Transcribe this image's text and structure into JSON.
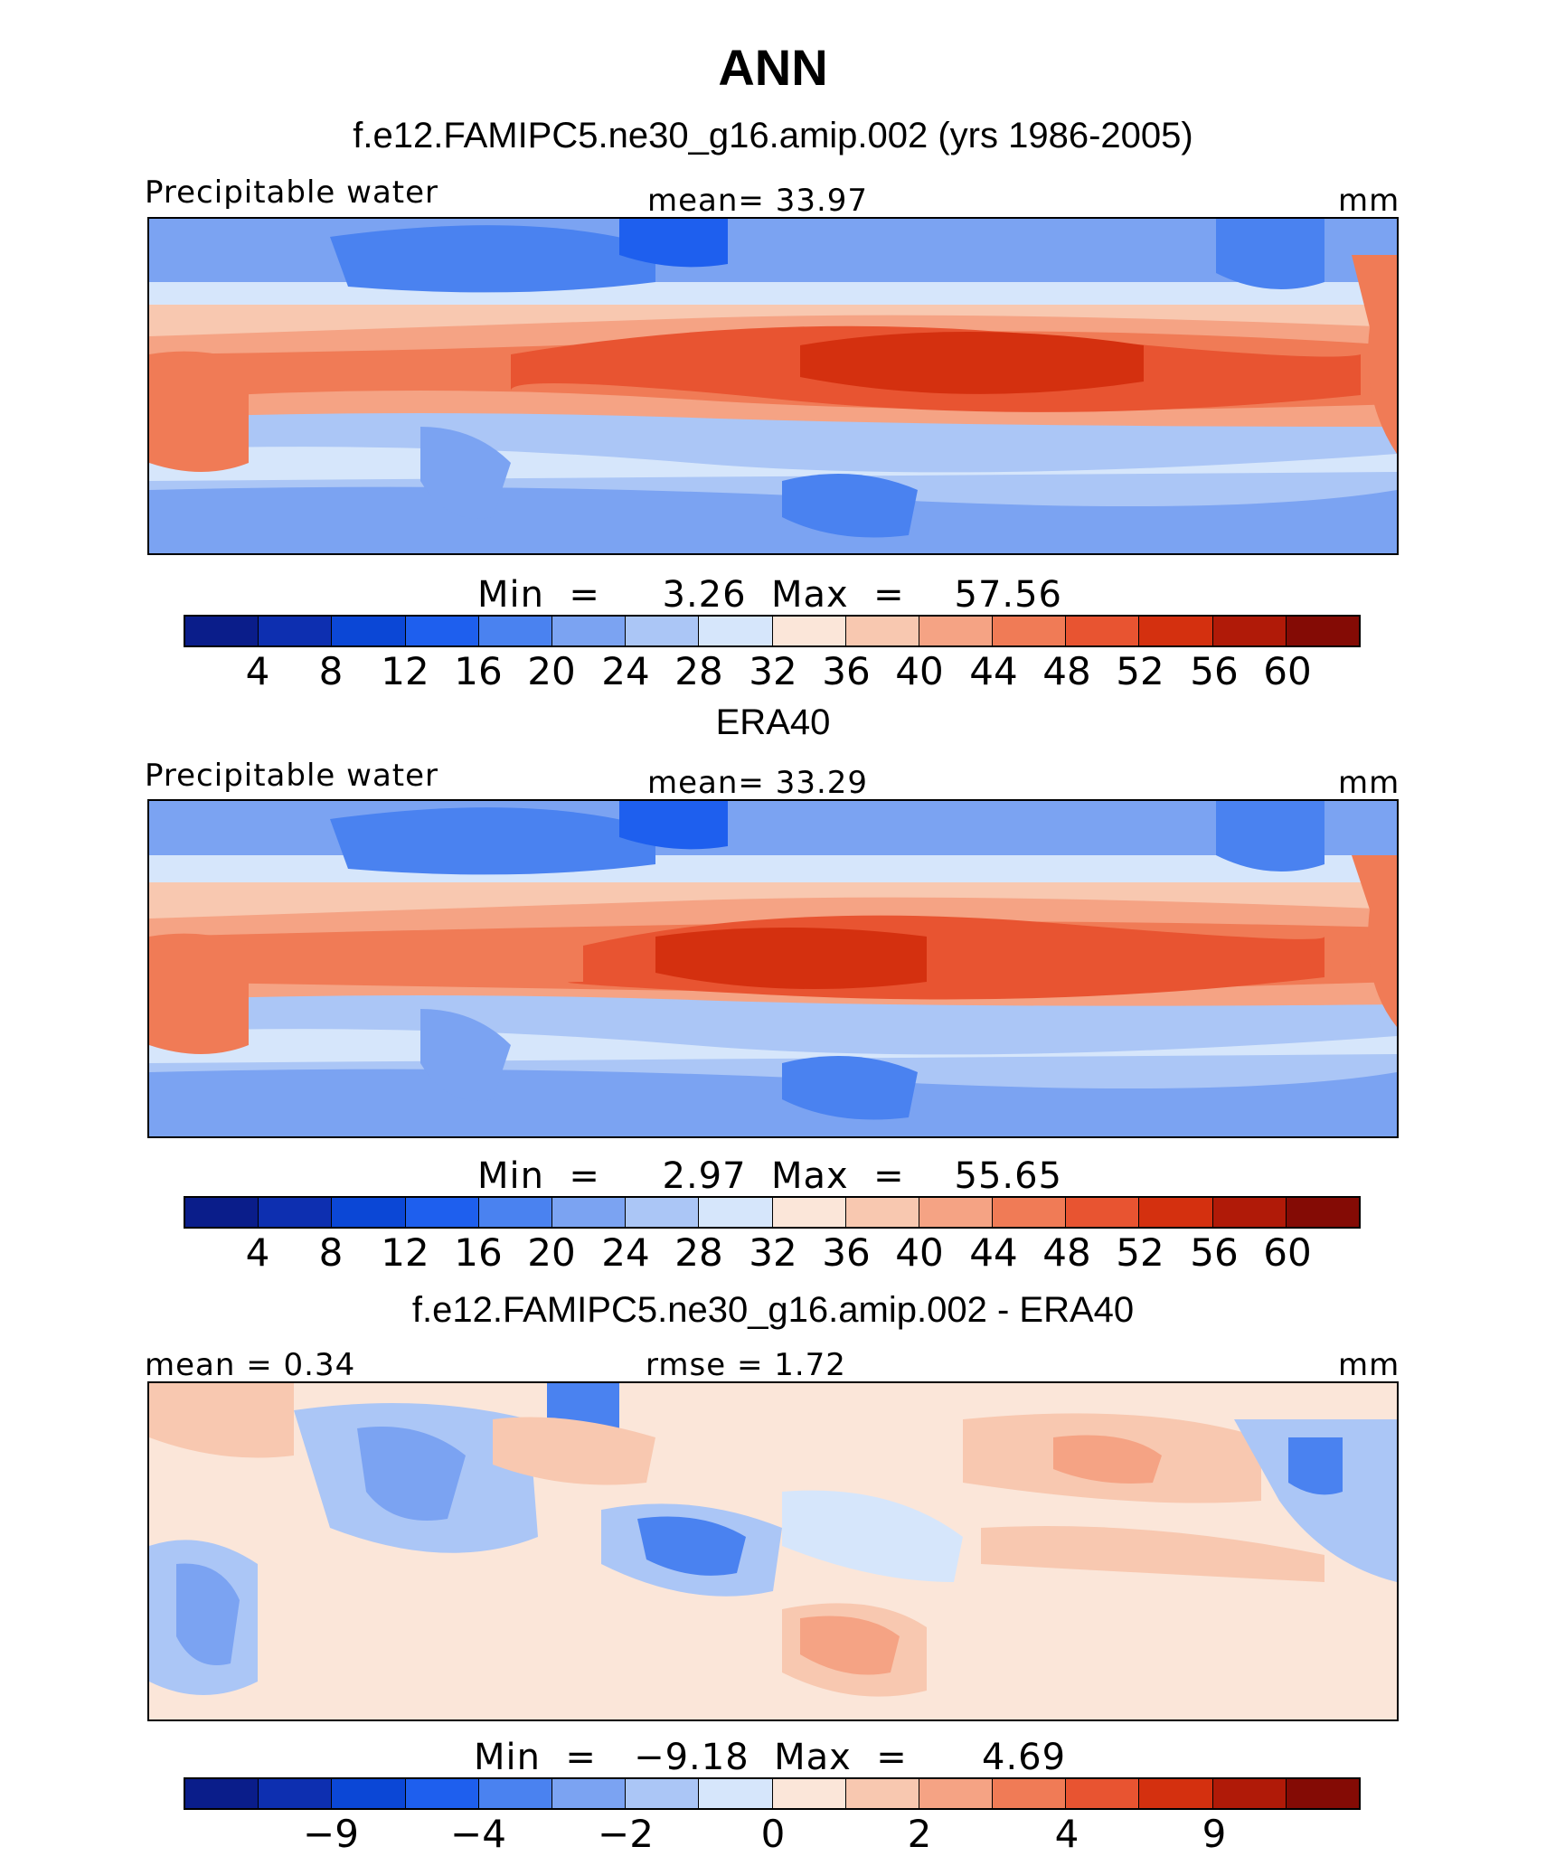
{
  "title": "ANN",
  "colors": [
    "#0a1d8a",
    "#0d2fb0",
    "#0b47d6",
    "#1e5fee",
    "#4a82f0",
    "#7ba3f2",
    "#abc6f6",
    "#d6e6fb",
    "#fbe6d9",
    "#f8c8b0",
    "#f5a384",
    "#f07b56",
    "#e85431",
    "#d4300f",
    "#b01a08",
    "#840b05"
  ],
  "panels": [
    {
      "subtitle": "f.e12.FAMIPC5.ne30_g16.amip.002 (yrs 1986-2005)",
      "left_label": "Precipitable water",
      "center_label": "mean=   33.97",
      "units": "mm",
      "minmax": "Min  =     3.26  Max  =    57.56",
      "ticks": [
        "4",
        "8",
        "12",
        "16",
        "20",
        "24",
        "28",
        "32",
        "36",
        "40",
        "44",
        "48",
        "52",
        "56",
        "60"
      ]
    },
    {
      "subtitle": "ERA40",
      "left_label": "Precipitable water",
      "center_label": "mean=   33.29",
      "units": "mm",
      "minmax": "Min  =     2.97  Max  =    55.65",
      "ticks": [
        "4",
        "8",
        "12",
        "16",
        "20",
        "24",
        "28",
        "32",
        "36",
        "40",
        "44",
        "48",
        "52",
        "56",
        "60"
      ]
    },
    {
      "subtitle": "f.e12.FAMIPC5.ne30_g16.amip.002 - ERA40",
      "left_label": "mean  =    0.34",
      "center_label": "rmse  =    1.72",
      "units": "mm",
      "minmax": "Min  =   −9.18  Max  =      4.69",
      "ticks": [
        "−9",
        "−4",
        "−2",
        "0",
        "2",
        "4",
        "9"
      ]
    }
  ]
}
